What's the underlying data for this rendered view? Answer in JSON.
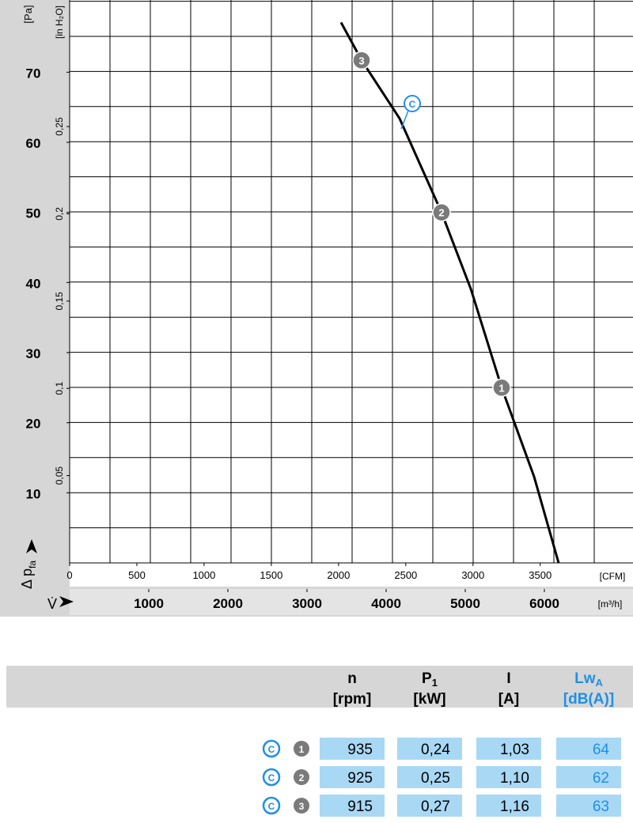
{
  "chart_data": {
    "type": "line",
    "ylabel": {
      "main": "Δ p",
      "sub": "fa"
    },
    "yunit": "[Pa]",
    "y2unit": "[in H₂O]",
    "xsymbol": "V̇",
    "xunit": "[m³/h]",
    "x2unit": "[CFM]",
    "xlim": [
      0,
      7120
    ],
    "xticks": [
      1000,
      2000,
      3000,
      4000,
      5000,
      6000
    ],
    "x2lim": [
      0,
      4190
    ],
    "x2ticks": [
      0,
      500,
      1000,
      1500,
      2000,
      2500,
      3000,
      3500
    ],
    "ylim": [
      0,
      80.3
    ],
    "yticks": [
      10,
      20,
      30,
      40,
      50,
      60,
      70
    ],
    "y2lim": [
      0,
      0.3225
    ],
    "y2ticks": [
      {
        "value": 0.05,
        "label": "0,05"
      },
      {
        "value": 0.1,
        "label": "0,1"
      },
      {
        "value": 0.15,
        "label": "0,15"
      },
      {
        "value": 0.2,
        "label": "0,2"
      },
      {
        "value": 0.25,
        "label": "0,25"
      }
    ],
    "grid": true,
    "series": [
      {
        "name": "C",
        "color": "#000000",
        "label_color": "#1e90e6",
        "x": [
          3430,
          3690,
          4170,
          4700,
          5070,
          5460,
          5870,
          6180
        ],
        "values": [
          77.1,
          71.7,
          63.4,
          50,
          39.1,
          25,
          12.3,
          0
        ]
      }
    ],
    "points": {
      "labels": [
        "3",
        "2",
        "1"
      ],
      "x": [
        3690,
        4700,
        5460
      ],
      "values": [
        71.7,
        50,
        25
      ],
      "color": "#7a7a7a"
    }
  },
  "table": {
    "header": [
      {
        "main": "n",
        "unit": "[rpm]"
      },
      {
        "main": "P",
        "sub": "1",
        "unit": "[kW]"
      },
      {
        "main": "I",
        "unit": "[A]"
      },
      {
        "main": "Lw",
        "sub": "A",
        "unit": "[dB(A)]"
      }
    ],
    "rows": [
      {
        "curve": "C",
        "point": "1",
        "cells": [
          "935",
          "0,24",
          "1,03",
          "64"
        ]
      },
      {
        "curve": "C",
        "point": "2",
        "cells": [
          "925",
          "0,25",
          "1,10",
          "62"
        ]
      },
      {
        "curve": "C",
        "point": "3",
        "cells": [
          "915",
          "0,27",
          "1,16",
          "63"
        ]
      }
    ]
  }
}
